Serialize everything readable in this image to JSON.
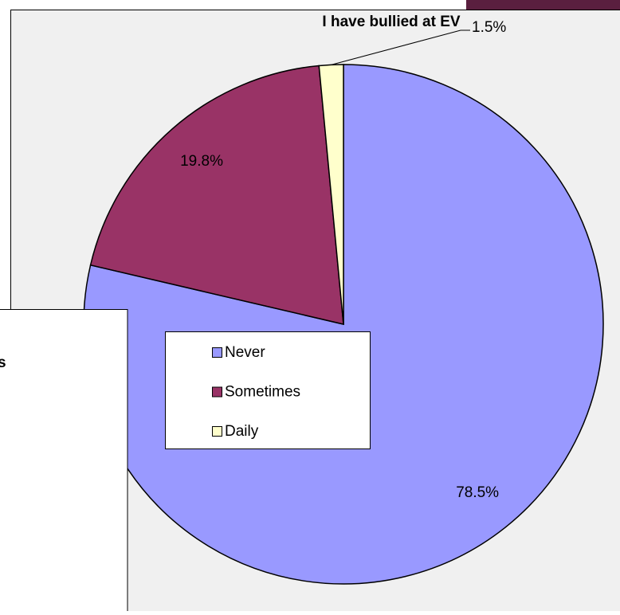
{
  "chart_data": {
    "type": "pie",
    "title": "I have bullied at EV",
    "categories": [
      "Never",
      "Sometimes",
      "Daily"
    ],
    "values": [
      78.5,
      19.8,
      1.5
    ],
    "value_labels": [
      "78.5%",
      "19.8%",
      "1.5%"
    ],
    "colors": [
      "#9999ff",
      "#993366",
      "#ffffcc"
    ],
    "legend": "center"
  },
  "partial_label": "s"
}
